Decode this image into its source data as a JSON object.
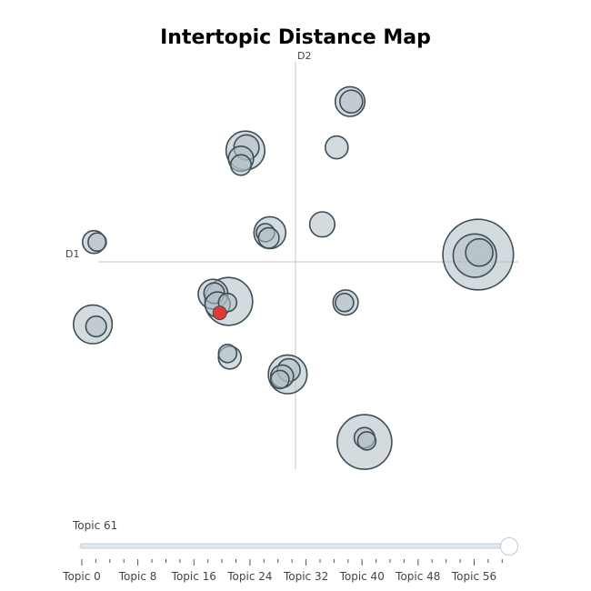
{
  "chart_data": {
    "type": "scatter",
    "title": "Intertopic Distance Map",
    "xlabel": "D1",
    "ylabel": "D2",
    "xlim": [
      -10,
      10
    ],
    "ylim": [
      -10,
      10
    ],
    "grid": false,
    "colors": {
      "bubble_fill": "#b0bec5",
      "bubble_stroke": "#3d4f55",
      "selected": "#e53935",
      "axis_line": "#d9d9d9",
      "slider_track": "#e2e8ef",
      "slider_handle": "#ffffff"
    },
    "bubbles": [
      {
        "x": 8.2,
        "y": 0.35,
        "size": 3.1
      },
      {
        "x": 8.05,
        "y": 0.3,
        "size": 1.9
      },
      {
        "x": 8.25,
        "y": 0.45,
        "size": 1.2
      },
      {
        "x": 2.45,
        "y": 7.7,
        "size": 1.3
      },
      {
        "x": 2.5,
        "y": 7.7,
        "size": 1.0
      },
      {
        "x": 1.85,
        "y": 5.5,
        "size": 1.0
      },
      {
        "x": 1.2,
        "y": 1.8,
        "size": 1.1
      },
      {
        "x": 2.25,
        "y": -1.95,
        "size": 1.1
      },
      {
        "x": 2.2,
        "y": -1.95,
        "size": 0.8
      },
      {
        "x": -2.25,
        "y": 5.35,
        "size": 1.7
      },
      {
        "x": -2.2,
        "y": 5.5,
        "size": 1.1
      },
      {
        "x": -2.45,
        "y": 4.95,
        "size": 1.1
      },
      {
        "x": -2.45,
        "y": 4.65,
        "size": 0.9
      },
      {
        "x": -1.15,
        "y": 1.4,
        "size": 1.4
      },
      {
        "x": -1.35,
        "y": 1.4,
        "size": 0.8
      },
      {
        "x": -1.2,
        "y": 1.15,
        "size": 0.9
      },
      {
        "x": -9.05,
        "y": 0.95,
        "size": 1.0
      },
      {
        "x": -8.9,
        "y": 0.95,
        "size": 0.8
      },
      {
        "x": -3.0,
        "y": -1.9,
        "size": 2.1
      },
      {
        "x": -3.7,
        "y": -1.55,
        "size": 1.3
      },
      {
        "x": -3.65,
        "y": -1.5,
        "size": 0.9
      },
      {
        "x": -3.5,
        "y": -2.05,
        "size": 1.1
      },
      {
        "x": -3.05,
        "y": -1.95,
        "size": 0.8
      },
      {
        "x": -9.1,
        "y": -3.0,
        "size": 1.7
      },
      {
        "x": -8.95,
        "y": -3.1,
        "size": 0.9
      },
      {
        "x": -2.95,
        "y": -4.6,
        "size": 1.0
      },
      {
        "x": -3.05,
        "y": -4.4,
        "size": 0.8
      },
      {
        "x": -0.35,
        "y": -5.4,
        "size": 1.7
      },
      {
        "x": -0.3,
        "y": -5.2,
        "size": 1.0
      },
      {
        "x": -0.6,
        "y": -5.5,
        "size": 1.0
      },
      {
        "x": -0.7,
        "y": -5.65,
        "size": 0.8
      },
      {
        "x": 3.1,
        "y": -8.65,
        "size": 2.4
      },
      {
        "x": 3.1,
        "y": -8.45,
        "size": 0.9
      },
      {
        "x": 3.2,
        "y": -8.6,
        "size": 0.8
      }
    ],
    "selected_bubble": {
      "x": -3.4,
      "y": -2.45,
      "size": 0.6
    }
  },
  "slider": {
    "current_label": "Topic 61",
    "tick_labels": [
      "Topic 0",
      "Topic 8",
      "Topic 16",
      "Topic 24",
      "Topic 32",
      "Topic 40",
      "Topic 48",
      "Topic 56"
    ],
    "min": 0,
    "max": 61,
    "value": 61,
    "minor_tick_step": 2
  }
}
